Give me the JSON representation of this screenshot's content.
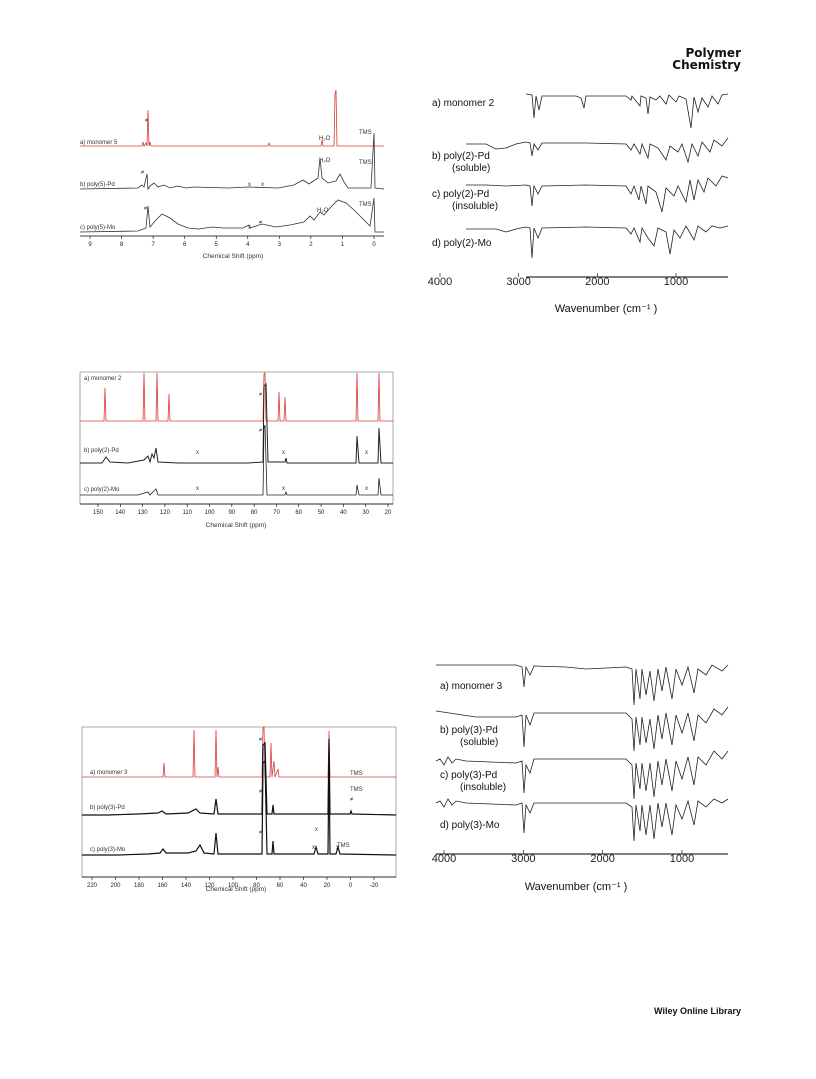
{
  "header": {
    "journal_line1": "Polymer",
    "journal_line2": "Chemistry"
  },
  "footer": {
    "text": "Wiley Online Library"
  },
  "figures": {
    "h1": {
      "traces": [
        "a) monomer 5",
        "b) poly(5)-Pd",
        "c) poly(5)-Mo"
      ],
      "xlabel": "Chemical Shift (ppm)",
      "ticks": [
        "9",
        "8",
        "7",
        "6",
        "5",
        "4",
        "3",
        "2",
        "1",
        "0"
      ],
      "annotations": {
        "h2o": "H₂O",
        "tms": "TMS",
        "x": "x",
        "hash": "≠"
      }
    },
    "ir2": {
      "traces": [
        {
          "lines": [
            "a) monomer 2"
          ]
        },
        {
          "lines": [
            "b)  poly(2)-Pd",
            "(soluble)"
          ]
        },
        {
          "lines": [
            "c)  poly(2)-Pd",
            "(insoluble)"
          ]
        },
        {
          "lines": [
            "d)  poly(2)-Mo"
          ]
        }
      ],
      "ticks": [
        "4000",
        "3000",
        "2000",
        "1000"
      ],
      "xlabel": "Wavenumber (cm⁻¹ )"
    },
    "c13_2": {
      "traces": [
        "a) monomer 2",
        "b) poly(2)-Pd",
        "c) poly(2)-Mo"
      ],
      "ticks": [
        "150",
        "140",
        "130",
        "120",
        "110",
        "100",
        "90",
        "80",
        "70",
        "60",
        "50",
        "40",
        "30",
        "20"
      ],
      "xlabel": "Chemical Shift (ppm)",
      "annotations": {
        "x": "x",
        "hash": "≠"
      }
    },
    "c13_3": {
      "traces": [
        "a) monomer 3",
        "b) poly(3)-Pd",
        "c) poly(3)-Mo"
      ],
      "ticks": [
        "220",
        "200",
        "180",
        "160",
        "140",
        "120",
        "100",
        "80",
        "60",
        "40",
        "20",
        "0",
        "-20"
      ],
      "xlabel": "Chemical Shift (ppm)",
      "annotations": {
        "tms": "TMS",
        "x": "x",
        "hash": "≠"
      }
    },
    "ir3": {
      "traces": [
        {
          "lines": [
            "a) monomer 3"
          ]
        },
        {
          "lines": [
            "b)  poly(3)-Pd",
            "(soluble)"
          ]
        },
        {
          "lines": [
            "c)  poly(3)-Pd",
            "(insoluble)"
          ]
        },
        {
          "lines": [
            "d) poly(3)-Mo"
          ]
        }
      ],
      "ticks": [
        "4000",
        "3000",
        "2000",
        "1000"
      ],
      "xlabel": "Wavenumber (cm⁻¹ )"
    }
  }
}
